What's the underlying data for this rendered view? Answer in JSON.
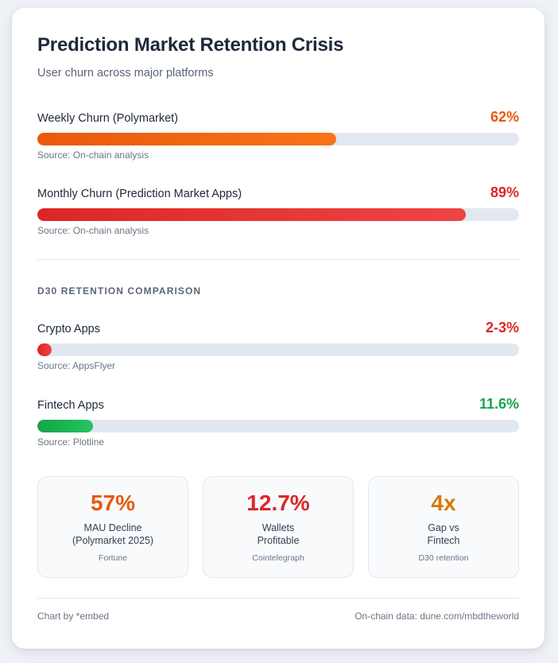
{
  "colors": {
    "orange": "#ea580c",
    "red": "#dc2626",
    "green": "#16a34a",
    "amber": "#d97706"
  },
  "chart_data": {
    "type": "bar",
    "title": "Prediction Market Retention Crisis",
    "subtitle": "User churn across major platforms",
    "xlim": [
      0,
      100
    ],
    "churn": [
      {
        "label": "Weekly Churn (Polymarket)",
        "value": 62,
        "display": "62%",
        "source": "Source: On-chain analysis",
        "color": "#ea580c",
        "gradient": [
          "#ea580c",
          "#f97316"
        ]
      },
      {
        "label": "Monthly Churn (Prediction Market Apps)",
        "value": 89,
        "display": "89%",
        "source": "Source: On-chain analysis",
        "color": "#dc2626",
        "gradient": [
          "#dc2626",
          "#ef4444"
        ]
      }
    ],
    "retention_title": "D30 RETENTION COMPARISON",
    "retention": [
      {
        "label": "Crypto Apps",
        "value": 2.5,
        "display": "2-3%",
        "source": "Source: AppsFlyer",
        "color": "#dc2626",
        "gradient": [
          "#dc2626",
          "#ef4444"
        ]
      },
      {
        "label": "Fintech Apps",
        "value": 11.6,
        "display": "11.6%",
        "source": "Source: Plotline",
        "color": "#16a34a",
        "gradient": [
          "#16a34a",
          "#22c55e"
        ]
      }
    ],
    "stats": [
      {
        "value": "57%",
        "label_line1": "MAU Decline",
        "label_line2": "(Polymarket 2025)",
        "source": "Fortune",
        "color": "#ea580c"
      },
      {
        "value": "12.7%",
        "label_line1": "Wallets",
        "label_line2": "Profitable",
        "source": "Cointelegraph",
        "color": "#dc2626"
      },
      {
        "value": "4x",
        "label_line1": "Gap vs",
        "label_line2": "Fintech",
        "source": "D30 retention",
        "color": "#d97706"
      }
    ]
  },
  "footer": {
    "left": "Chart by *embed",
    "right": "On-chain data: dune.com/mbdtheworld"
  }
}
